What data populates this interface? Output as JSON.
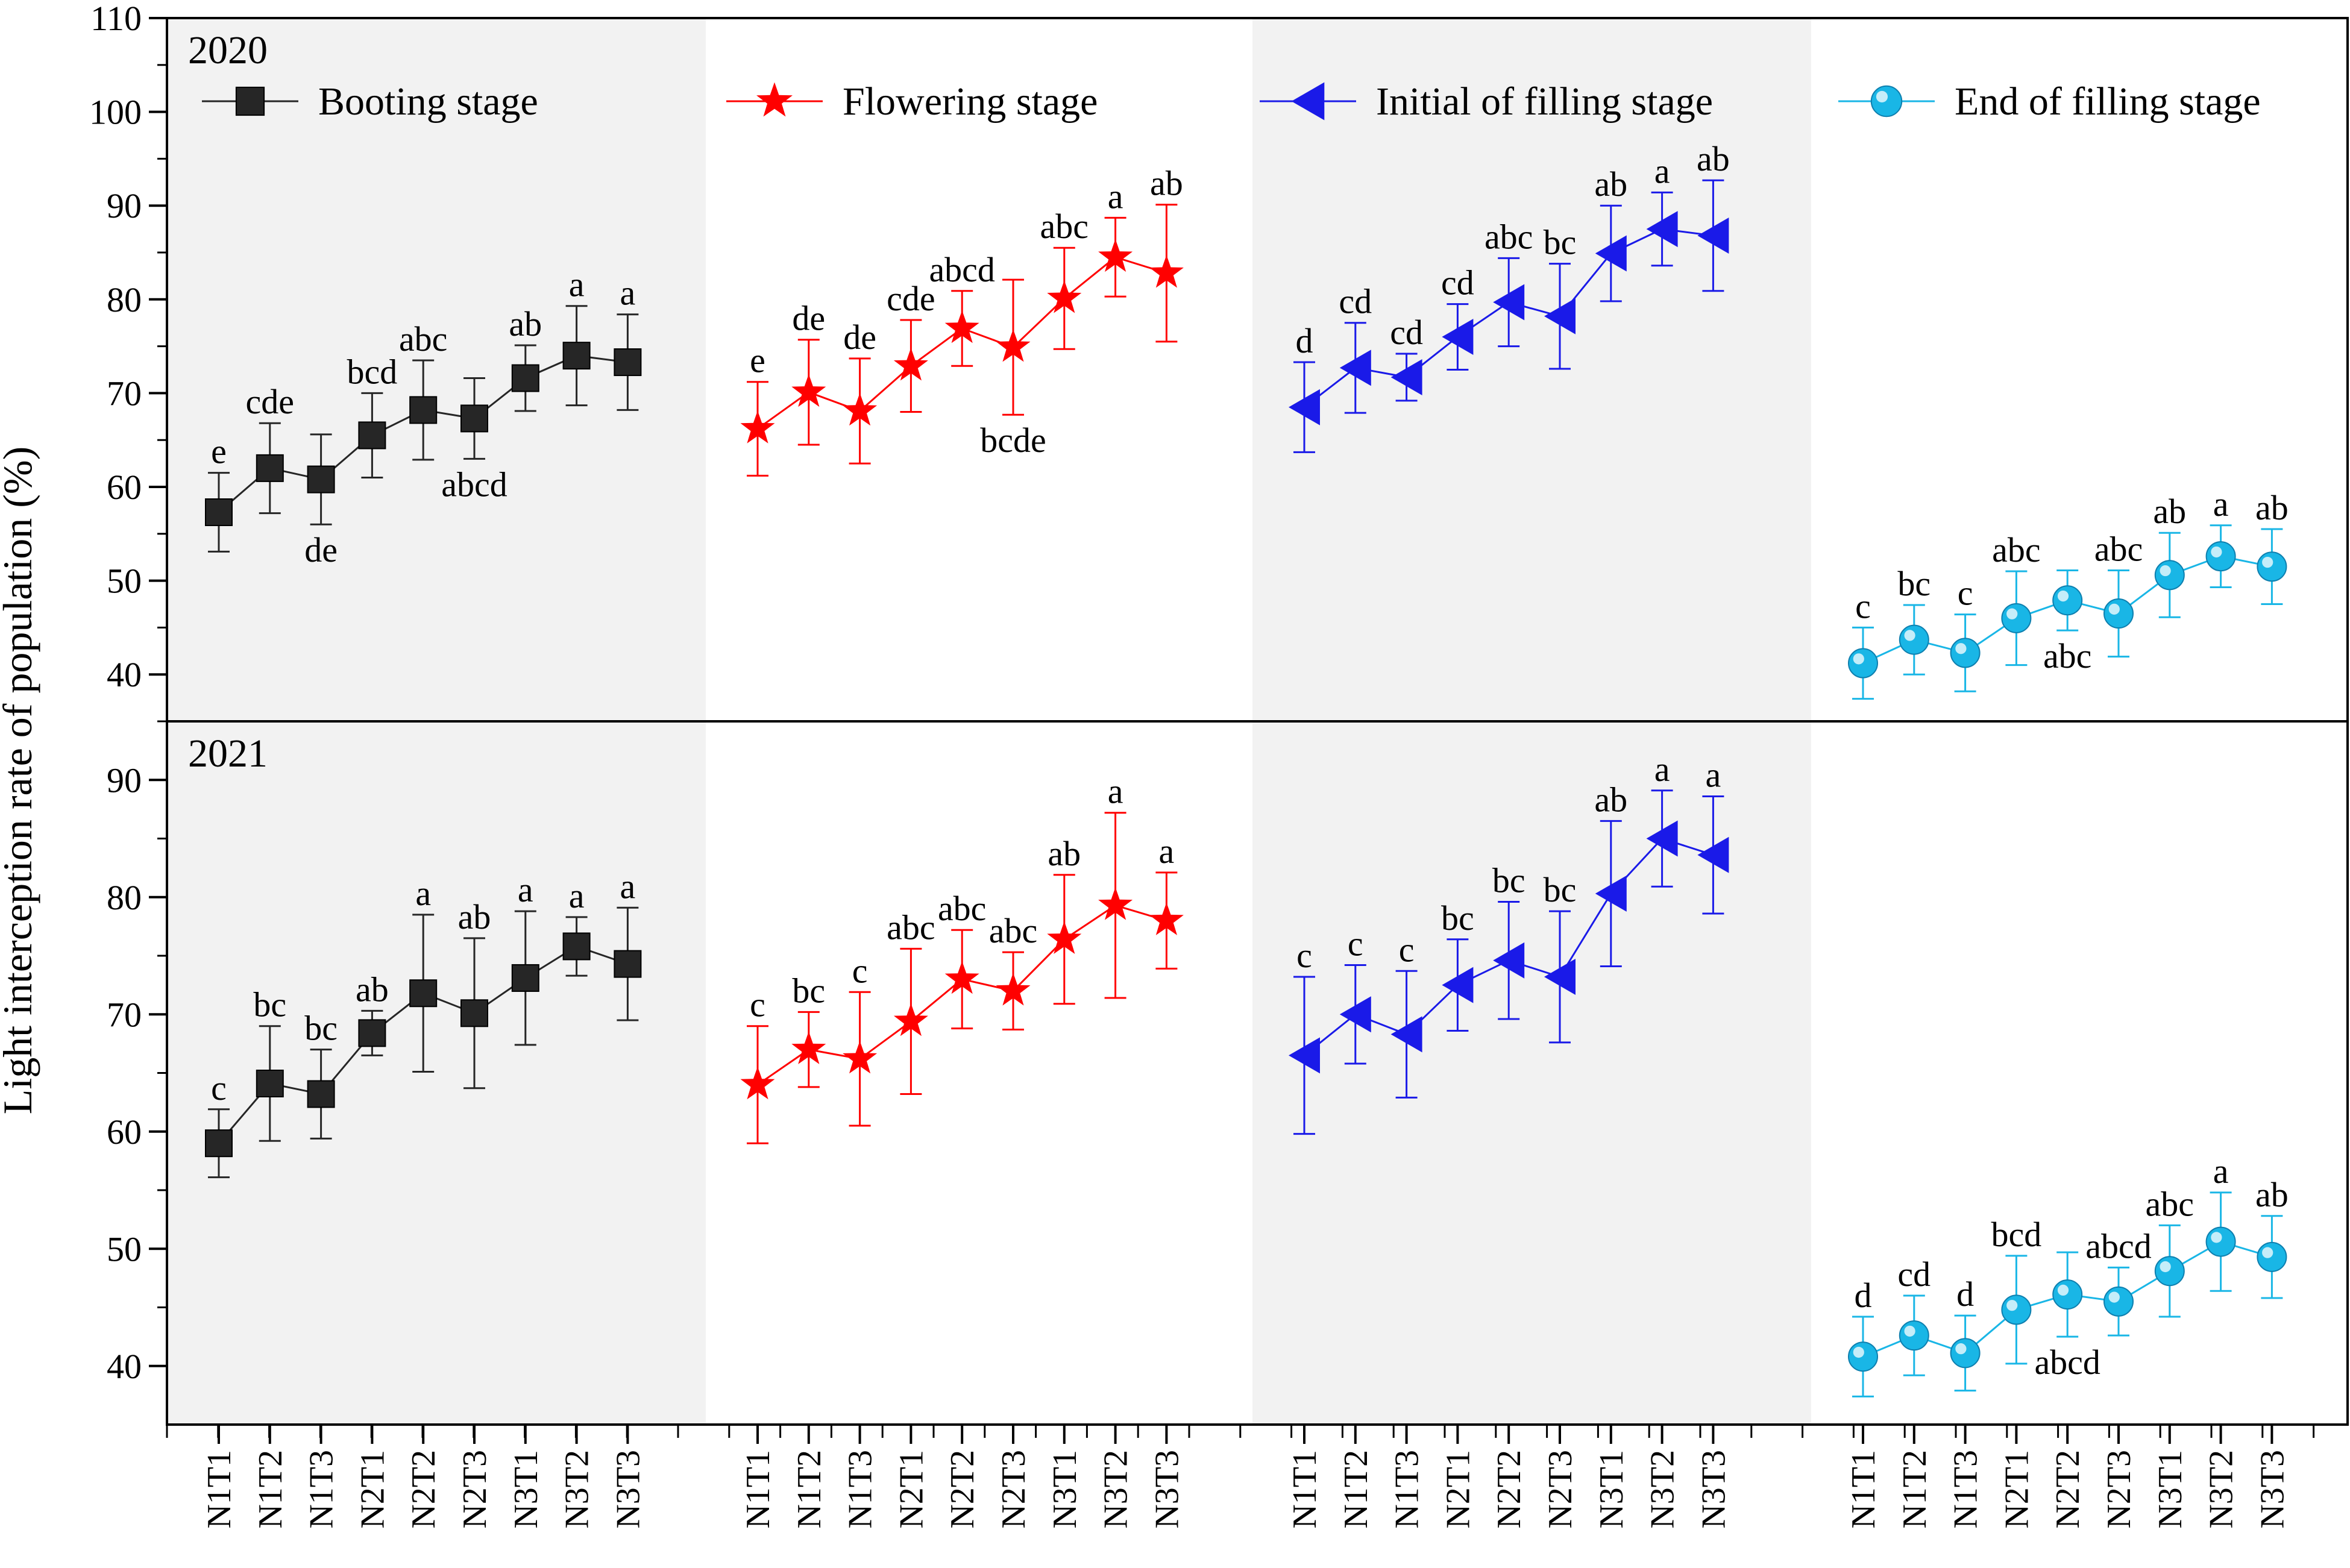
{
  "chart_data": {
    "type": "line",
    "ylabel": "Light interception rate of population (%)",
    "categories": [
      "N1T1",
      "N1T2",
      "N1T3",
      "N2T1",
      "N2T2",
      "N2T3",
      "N3T1",
      "N3T2",
      "N3T3"
    ],
    "colors": {
      "booting": "#262626",
      "flowering": "#ff0000",
      "initial_filling": "#1a1ae8",
      "end_filling": "#19b6e6",
      "shade": "#f2f2f2"
    },
    "legend": [
      {
        "key": "booting",
        "label": "Booting stage",
        "marker": "square"
      },
      {
        "key": "flowering",
        "label": "Flowering stage",
        "marker": "star"
      },
      {
        "key": "initial_filling",
        "label": "Initial of filling stage",
        "marker": "left-triangle"
      },
      {
        "key": "end_filling",
        "label": "End of filling stage",
        "marker": "sphere"
      }
    ],
    "panels": [
      {
        "year": "2020",
        "ylim": [
          35,
          110
        ],
        "yticks": [
          40,
          50,
          60,
          70,
          80,
          90,
          100,
          110
        ],
        "series": [
          {
            "key": "booting",
            "name": "Booting stage",
            "values": [
              57.3,
              62.0,
              60.8,
              65.5,
              68.2,
              67.3,
              71.6,
              74.0,
              73.3
            ],
            "errors": [
              4.2,
              4.8,
              4.8,
              4.5,
              5.3,
              4.3,
              3.5,
              5.3,
              5.1
            ],
            "labels": [
              "e",
              "cde",
              "de",
              "bcd",
              "abc",
              "abcd",
              "ab",
              "a",
              "a"
            ],
            "label_pos": [
              "above",
              "above",
              "below",
              "above",
              "above",
              "below",
              "above",
              "above",
              "above"
            ]
          },
          {
            "key": "flowering",
            "name": "Flowering stage",
            "values": [
              66.2,
              70.1,
              68.1,
              72.9,
              76.9,
              74.9,
              80.1,
              84.5,
              82.8
            ],
            "errors": [
              5.0,
              5.6,
              5.6,
              4.9,
              4.0,
              7.2,
              5.4,
              4.2,
              7.3
            ],
            "labels": [
              "e",
              "de",
              "de",
              "cde",
              "abcd",
              "bcde",
              "abc",
              "a",
              "ab"
            ],
            "label_pos": [
              "above",
              "above",
              "above",
              "above",
              "above",
              "below",
              "above",
              "above",
              "above"
            ]
          },
          {
            "key": "initial_filling",
            "name": "Initial of filling stage",
            "values": [
              68.5,
              72.7,
              71.7,
              76.0,
              79.7,
              78.2,
              84.9,
              87.5,
              86.8
            ],
            "errors": [
              4.8,
              4.8,
              2.5,
              3.5,
              4.7,
              5.6,
              5.1,
              3.9,
              5.9
            ],
            "labels": [
              "d",
              "cd",
              "cd",
              "cd",
              "abc",
              "bc",
              "ab",
              "a",
              "ab"
            ],
            "label_pos": [
              "above",
              "above",
              "above",
              "above",
              "above",
              "above",
              "above",
              "above",
              "above"
            ]
          },
          {
            "key": "end_filling",
            "name": "End of filling stage",
            "values": [
              41.2,
              43.7,
              42.3,
              46.0,
              47.9,
              46.5,
              50.6,
              52.6,
              51.5
            ],
            "errors": [
              3.8,
              3.7,
              4.1,
              5.0,
              3.2,
              4.6,
              4.5,
              3.3,
              4.0
            ],
            "labels": [
              "c",
              "bc",
              "c",
              "abc",
              "abc",
              "abc",
              "ab",
              "a",
              "ab"
            ],
            "label_pos": [
              "above",
              "above",
              "above",
              "above",
              "below",
              "above",
              "above",
              "above",
              "above"
            ]
          }
        ]
      },
      {
        "year": "2021",
        "ylim": [
          35,
          95
        ],
        "yticks": [
          40,
          50,
          60,
          70,
          80,
          90
        ],
        "series": [
          {
            "key": "booting",
            "name": "Booting stage",
            "values": [
              59.0,
              64.1,
              63.2,
              68.4,
              71.8,
              70.1,
              73.1,
              75.8,
              74.3
            ],
            "errors": [
              2.9,
              4.9,
              3.8,
              1.9,
              6.7,
              6.4,
              5.7,
              2.5,
              4.8
            ],
            "labels": [
              "c",
              "bc",
              "bc",
              "ab",
              "a",
              "ab",
              "a",
              "a",
              "a"
            ],
            "label_pos": [
              "above",
              "above",
              "above",
              "above",
              "above",
              "above",
              "above",
              "above",
              "above"
            ]
          },
          {
            "key": "flowering",
            "name": "Flowering stage",
            "values": [
              64.0,
              67.0,
              66.2,
              69.4,
              73.0,
              72.0,
              76.4,
              79.3,
              78.0
            ],
            "errors": [
              5.0,
              3.2,
              5.7,
              6.2,
              4.2,
              3.3,
              5.5,
              7.9,
              4.1
            ],
            "labels": [
              "c",
              "bc",
              "c",
              "abc",
              "abc",
              "abc",
              "ab",
              "a",
              "a"
            ],
            "label_pos": [
              "above",
              "above",
              "above",
              "above",
              "above",
              "above",
              "above",
              "above",
              "above"
            ]
          },
          {
            "key": "initial_filling",
            "name": "Initial of filling stage",
            "values": [
              66.5,
              70.0,
              68.3,
              72.5,
              74.6,
              73.2,
              80.3,
              85.0,
              83.6
            ],
            "errors": [
              6.7,
              4.2,
              5.4,
              3.9,
              5.0,
              5.6,
              6.2,
              4.1,
              5.0
            ],
            "labels": [
              "c",
              "c",
              "c",
              "bc",
              "bc",
              "bc",
              "ab",
              "a",
              "a"
            ],
            "label_pos": [
              "above",
              "above",
              "above",
              "above",
              "above",
              "above",
              "above",
              "above",
              "above"
            ]
          },
          {
            "key": "end_filling",
            "name": "End of filling stage",
            "values": [
              40.8,
              42.6,
              41.1,
              44.8,
              46.1,
              45.5,
              48.1,
              50.6,
              49.3
            ],
            "errors": [
              3.4,
              3.4,
              3.2,
              4.6,
              3.6,
              2.9,
              3.9,
              4.2,
              3.5
            ],
            "labels": [
              "d",
              "cd",
              "d",
              "bcd",
              "abcd",
              "abcd",
              "abc",
              "a",
              "ab"
            ],
            "label_pos": [
              "above",
              "above",
              "above",
              "above",
              "below",
              "above",
              "above",
              "above",
              "above"
            ]
          }
        ]
      }
    ]
  }
}
